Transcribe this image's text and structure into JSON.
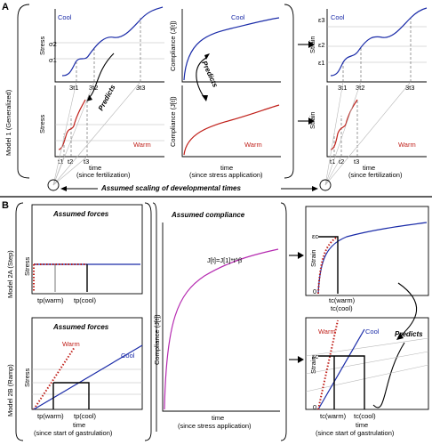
{
  "panelA": {
    "letter": "A",
    "model_label": "Model 1 (Generalized)",
    "cool": "Cool",
    "warm": "Warm",
    "stress": "Stress",
    "strain": "Strain",
    "compliance": "Compliance (J[t])",
    "predicts": "Predicts",
    "sigma1": "σ1",
    "sigma2": "σ2",
    "eps1": "ε1",
    "eps2": "ε2",
    "eps3": "ε3",
    "tick_3t1": "3t1",
    "tick_3t2": "3t2",
    "tick_3t3": "3t3",
    "tick_t1": "t1",
    "tick_t2": "t2",
    "tick_t3": "t3",
    "time": "time",
    "since_fert": "(since fertilization)",
    "since_stress": "(since stress application)",
    "assumed_scaling": "Assumed scaling of developmental times"
  },
  "panelB": {
    "letter": "B",
    "model2a": "Model 2A (Step)",
    "model2b": "Model 2B (Ramp)",
    "assumed_forces": "Assumed forces",
    "assumed_compliance": "Assumed compliance",
    "stress": "Stress",
    "strain": "Strain",
    "compliance": "Compliance (J[t])",
    "formula": "J[t]=J[1]*t^β",
    "tp_warm": "tp(warm)",
    "tp_cool": "tp(cool)",
    "tc_warm": "tc(warm)",
    "tc_cool": "tc(cool)",
    "eps_c": "εc",
    "zero": "0",
    "warm": "Warm",
    "cool": "Cool",
    "predicts": "Predicts",
    "time": "time",
    "since_gast": "(since start of gastrulation)",
    "since_stress": "(since stress application)"
  }
}
